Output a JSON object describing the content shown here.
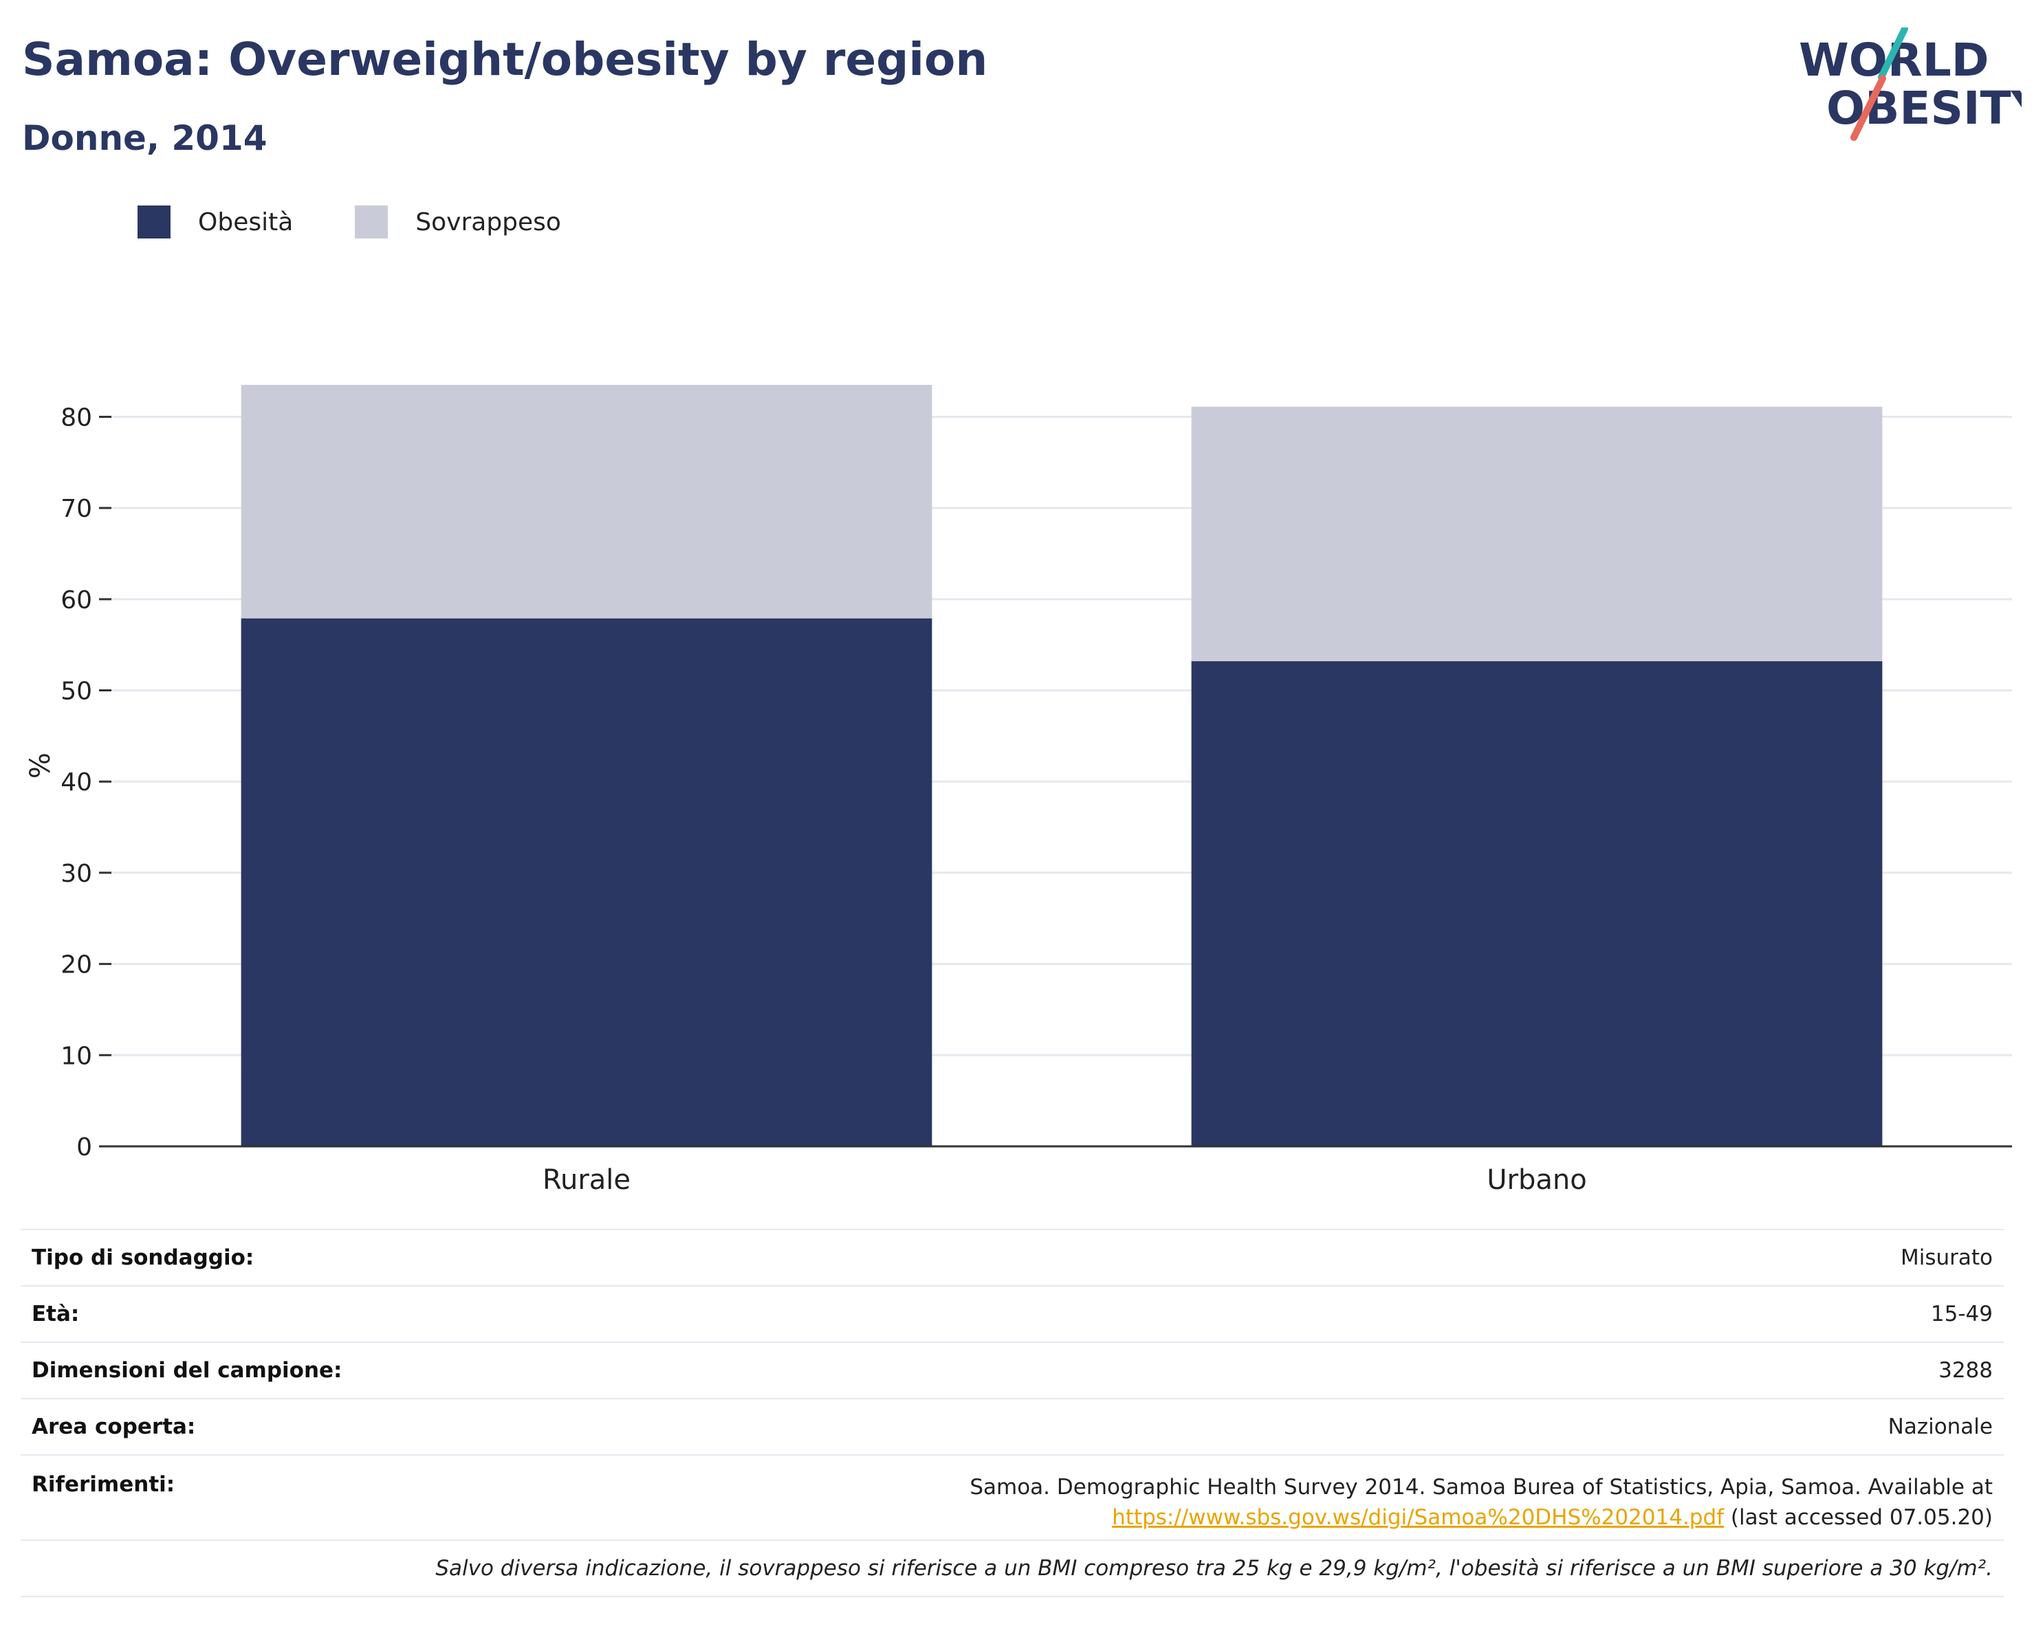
{
  "header": {
    "title": "Samoa: Overweight/obesity by region",
    "subtitle": "Donne, 2014",
    "logo_line1": "WORLD",
    "logo_line2": "OBESITY"
  },
  "colors": {
    "title": "#2a3763",
    "obesity": "#2a3763",
    "overweight": "#c9ccd8",
    "grid": "#e6e8ef",
    "link": "#e8a400",
    "logo_accent_teal": "#2bb5b0",
    "logo_accent_red": "#e8685a"
  },
  "legend": [
    {
      "label": "Obesità",
      "color": "#2a3763"
    },
    {
      "label": "Sovrappeso",
      "color": "#c9ccd8"
    }
  ],
  "chart_data": {
    "type": "bar",
    "stacked": true,
    "categories": [
      "Rurale",
      "Urbano"
    ],
    "series": [
      {
        "name": "Obesità",
        "values": [
          57.9,
          53.2
        ]
      },
      {
        "name": "Sovrappeso",
        "values": [
          25.6,
          27.9
        ]
      }
    ],
    "ylabel": "%",
    "ylim": [
      0,
      83.5
    ],
    "yticks": [
      0,
      10,
      20,
      30,
      40,
      50,
      60,
      70,
      80
    ],
    "grid": true,
    "legend_position": "top-left"
  },
  "info": {
    "rows": [
      {
        "label": "Tipo di sondaggio:",
        "value": "Misurato"
      },
      {
        "label": "Età:",
        "value": "15-49"
      },
      {
        "label": "Dimensioni del campione:",
        "value": "3288"
      },
      {
        "label": "Area coperta:",
        "value": "Nazionale"
      }
    ],
    "references_label": "Riferimenti:",
    "references_line1": "Samoa. Demographic Health Survey 2014. Samoa Burea of Statistics, Apia, Samoa. Available at",
    "references_link": "https://www.sbs.gov.ws/digi/Samoa%20DHS%202014.pdf",
    "references_suffix": " (last accessed 07.05.20)",
    "note": "Salvo diversa indicazione, il sovrappeso si riferisce a un BMI compreso tra 25 kg e 29,9 kg/m², l'obesità si riferisce a un BMI superiore a 30 kg/m²."
  }
}
